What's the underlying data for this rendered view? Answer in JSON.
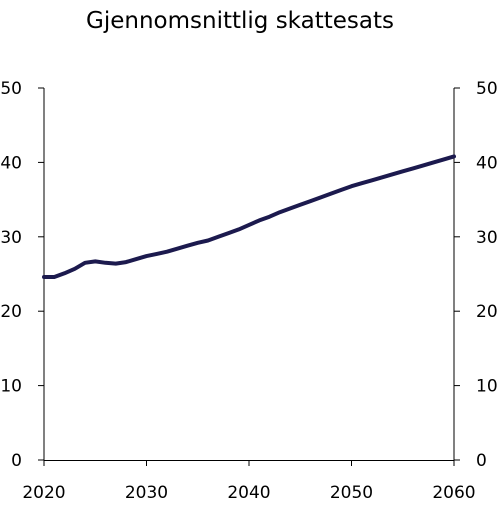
{
  "colors": {
    "series": "#1c1a4e",
    "axis": "#000000",
    "text": "#000000"
  },
  "chart_data": {
    "type": "line",
    "title": "Gjennomsnittlig skattesats",
    "xlabel": "",
    "ylabel": "",
    "xlim": [
      2020,
      2060
    ],
    "ylim": [
      0,
      50
    ],
    "x_ticks": [
      2020,
      2030,
      2040,
      2050,
      2060
    ],
    "y_ticks": [
      0,
      10,
      20,
      30,
      40,
      50
    ],
    "grid": false,
    "legend": false,
    "series": [
      {
        "x": [
          2020,
          2021,
          2022,
          2023,
          2024,
          2025,
          2026,
          2027,
          2028,
          2029,
          2030,
          2031,
          2032,
          2033,
          2034,
          2035,
          2036,
          2037,
          2038,
          2039,
          2040,
          2041,
          2042,
          2043,
          2044,
          2045,
          2046,
          2047,
          2048,
          2049,
          2050,
          2051,
          2052,
          2053,
          2054,
          2055,
          2056,
          2057,
          2058,
          2059,
          2060
        ],
        "values": [
          24.6,
          24.6,
          25.1,
          25.7,
          26.5,
          26.7,
          26.5,
          26.4,
          26.6,
          27.0,
          27.4,
          27.7,
          28.0,
          28.4,
          28.8,
          29.2,
          29.5,
          30.0,
          30.5,
          31.0,
          31.6,
          32.2,
          32.7,
          33.3,
          33.8,
          34.3,
          34.8,
          35.3,
          35.8,
          36.3,
          36.8,
          37.2,
          37.6,
          38.0,
          38.4,
          38.8,
          39.2,
          39.6,
          40.0,
          40.4,
          40.8
        ]
      }
    ]
  }
}
